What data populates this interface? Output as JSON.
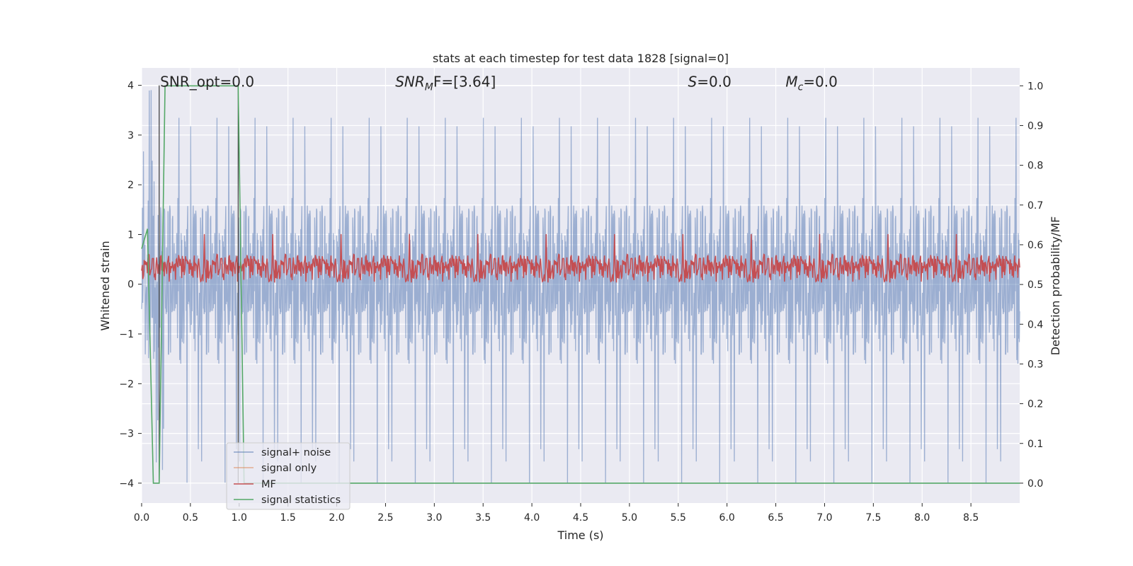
{
  "chart_data": {
    "type": "line",
    "title": "stats at each timestep for test data 1828 [signal=0]",
    "xlabel": "Time (s)",
    "ylabel": "Whitened strain",
    "y2label": "Detection probability/MF",
    "xlim": [
      0,
      9.0
    ],
    "ylim": [
      -4.4,
      4.35
    ],
    "y2lim": [
      -0.05,
      1.045
    ],
    "xticks": [
      0.0,
      0.5,
      1.0,
      1.5,
      2.0,
      2.5,
      3.0,
      3.5,
      4.0,
      4.5,
      5.0,
      5.5,
      6.0,
      6.5,
      7.0,
      7.5,
      8.0,
      8.5
    ],
    "xtick_labels": [
      "0.0",
      "0.5",
      "1.0",
      "1.5",
      "2.0",
      "2.5",
      "3.0",
      "3.5",
      "4.0",
      "4.5",
      "5.0",
      "5.5",
      "6.0",
      "6.5",
      "7.0",
      "7.5",
      "8.0",
      "8.5"
    ],
    "yticks": [
      4,
      3,
      2,
      1,
      0,
      -1,
      -2,
      -3,
      -4
    ],
    "ytick_labels": [
      "4",
      "3",
      "2",
      "1",
      "0",
      "−1",
      "−2",
      "−3",
      "−4"
    ],
    "y2ticks": [
      1.0,
      0.9,
      0.8,
      0.7,
      0.6,
      0.5,
      0.4,
      0.3,
      0.2,
      0.1,
      0.0
    ],
    "y2tick_labels": [
      "1.0",
      "0.9",
      "0.8",
      "0.7",
      "0.6",
      "0.5",
      "0.4",
      "0.3",
      "0.2",
      "0.1",
      "0.0"
    ],
    "grid": true,
    "legend": "lower-left",
    "series": [
      {
        "name": "signal+ noise",
        "color": "#4c72b0",
        "axis": "left",
        "style": "noise",
        "envelope": {
          "amplitude": 1.6,
          "peak_max": 4.0,
          "peak_min": -4.0
        }
      },
      {
        "name": "signal only",
        "color": "#dd8452",
        "axis": "left",
        "values": []
      },
      {
        "name": "MF",
        "color": "#c44e52",
        "axis": "right",
        "style": "noise",
        "envelope": {
          "center": 0.54,
          "amplitude": 0.035,
          "peak_max": 0.63,
          "peak_min": 0.5
        }
      },
      {
        "name": "signal statistics",
        "color": "#55a868",
        "axis": "right",
        "x": [
          0.0,
          0.06,
          0.12,
          0.18,
          0.24,
          0.28,
          0.4,
          0.6,
          0.8,
          0.99,
          1.05,
          1.1,
          9.0
        ],
        "values": [
          0.59,
          0.64,
          0.0,
          0.0,
          1.0,
          1.0,
          1.0,
          1.0,
          1.0,
          1.0,
          0.0,
          0.0,
          0.0
        ]
      }
    ],
    "vlines": [
      0.18,
      0.99
    ],
    "annotations": [
      {
        "id": "snr-opt",
        "text": "SNR_opt=0.0",
        "x": 0.19,
        "y": 4.0
      },
      {
        "id": "snr-mf",
        "prefix": "SNR",
        "sub": "M",
        "suffix": "F=[3.64]",
        "x": 2.6,
        "y": 4.0
      },
      {
        "id": "s",
        "prefix": "S",
        "suffix": "=0.0",
        "x": 5.6,
        "y": 4.0
      },
      {
        "id": "mc",
        "prefix": "M",
        "sub": "c",
        "suffix": "=0.0",
        "x": 6.6,
        "y": 4.0
      }
    ]
  }
}
